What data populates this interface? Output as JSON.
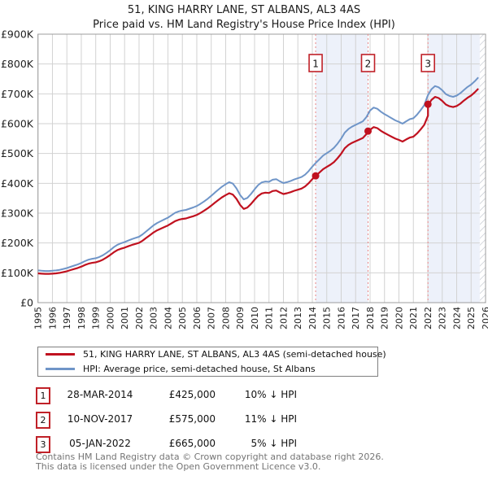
{
  "title": "51, KING HARRY LANE, ST ALBANS, AL3 4AS",
  "subtitle": "Price paid vs. HM Land Registry's House Price Index (HPI)",
  "chart_data": {
    "type": "line",
    "title": "51, KING HARRY LANE, ST ALBANS, AL3 4AS",
    "subtitle": "Price paid vs. HM Land Registry's House Price Index (HPI)",
    "x_axis": {
      "min": 1995,
      "max": 2026,
      "tick_labels": [
        "1995",
        "1996",
        "1997",
        "1998",
        "1999",
        "2000",
        "2001",
        "2002",
        "2003",
        "2004",
        "2005",
        "2006",
        "2007",
        "2008",
        "2009",
        "2010",
        "2011",
        "2012",
        "2013",
        "2014",
        "2015",
        "2016",
        "2017",
        "2018",
        "2019",
        "2020",
        "2021",
        "2022",
        "2023",
        "2024",
        "2025",
        "2026"
      ]
    },
    "y_axis": {
      "min": 0,
      "max": 900000,
      "step": 100000,
      "tick_labels": [
        "£0",
        "£100K",
        "£200K",
        "£300K",
        "£400K",
        "£500K",
        "£600K",
        "£700K",
        "£800K",
        "£900K"
      ]
    },
    "grid": true,
    "legend_position": "bottom",
    "colors": {
      "price_paid": "#c0111f",
      "hpi": "#6f95c8",
      "shade": "#edf1fa",
      "sale_line": "#e98585",
      "gridline": "#d2d2d2",
      "plot_border": "#9c9c9c",
      "hatch": "#b9bec7"
    },
    "series": [
      {
        "name": "51, KING HARRY LANE, ST ALBANS, AL3 4AS (semi-detached house)",
        "color": "#c0111f",
        "derivation": "hpi_times_ratio_segments"
      },
      {
        "name": "HPI: Average price, semi-detached house, St Albans",
        "color": "#6f95c8"
      }
    ],
    "hpi_series": {
      "x_start": 1995.0,
      "x_step": 0.25,
      "unit": "GBP_thousands",
      "values": [
        108,
        107,
        106,
        106,
        107,
        108,
        110,
        113,
        116,
        120,
        124,
        128,
        133,
        139,
        144,
        147,
        149,
        153,
        159,
        167,
        176,
        186,
        194,
        199,
        203,
        208,
        213,
        217,
        221,
        229,
        239,
        249,
        259,
        267,
        273,
        279,
        285,
        293,
        301,
        306,
        309,
        311,
        315,
        319,
        324,
        331,
        339,
        348,
        358,
        369,
        379,
        389,
        397,
        404,
        399,
        383,
        361,
        346,
        351,
        364,
        380,
        394,
        403,
        406,
        405,
        412,
        414,
        407,
        401,
        404,
        408,
        413,
        417,
        421,
        429,
        441,
        456,
        469,
        481,
        493,
        501,
        509,
        519,
        533,
        550,
        570,
        582,
        590,
        596,
        602,
        608,
        622,
        644,
        654,
        650,
        640,
        632,
        625,
        618,
        611,
        606,
        600,
        608,
        615,
        618,
        630,
        645,
        662,
        695,
        715,
        726,
        722,
        712,
        699,
        693,
        690,
        694,
        702,
        713,
        723,
        731,
        742,
        755
      ]
    },
    "price_ratio_segments": [
      {
        "from": 1995.0,
        "to": 2017.86,
        "ratio": 0.908
      },
      {
        "from": 2017.86,
        "to": 2022.01,
        "ratio": 0.9
      },
      {
        "from": 2022.01,
        "to": 2026.0,
        "ratio": 0.95
      }
    ],
    "sales": [
      {
        "marker": "1",
        "date": "28-MAR-2014",
        "x": 2014.23,
        "price_gbp": 425000,
        "price_label": "£425,000",
        "vs_hpi": "10% ↓ HPI"
      },
      {
        "marker": "2",
        "date": "10-NOV-2017",
        "x": 2017.86,
        "price_gbp": 575000,
        "price_label": "£575,000",
        "vs_hpi": "11% ↓ HPI"
      },
      {
        "marker": "3",
        "date": "05-JAN-2022",
        "x": 2022.01,
        "price_gbp": 665000,
        "price_label": "£665,000",
        "vs_hpi": "5% ↓ HPI"
      }
    ],
    "shaded_regions": [
      {
        "from": 2014.23,
        "to": 2017.86
      },
      {
        "from": 2022.01,
        "to": 2025.6
      }
    ],
    "no_data_hatch": {
      "from": 2025.6,
      "to": 2026.0
    }
  },
  "legend": {
    "items": [
      {
        "label": "51, KING HARRY LANE, ST ALBANS, AL3 4AS (semi-detached house)",
        "color": "#c0111f"
      },
      {
        "label": "HPI: Average price, semi-detached house, St Albans",
        "color": "#6f95c8"
      }
    ]
  },
  "sales_table": {
    "rows": [
      {
        "marker": "1",
        "date": "28-MAR-2014",
        "price": "£425,000",
        "vs_hpi": "10% ↓ HPI"
      },
      {
        "marker": "2",
        "date": "10-NOV-2017",
        "price": "£575,000",
        "vs_hpi": "11% ↓ HPI"
      },
      {
        "marker": "3",
        "date": "05-JAN-2022",
        "price": "£665,000",
        "vs_hpi": "5% ↓ HPI"
      }
    ]
  },
  "footer": {
    "line1": "Contains HM Land Registry data © Crown copyright and database right 2026.",
    "line2": "This data is licensed under the Open Government Licence v3.0."
  }
}
